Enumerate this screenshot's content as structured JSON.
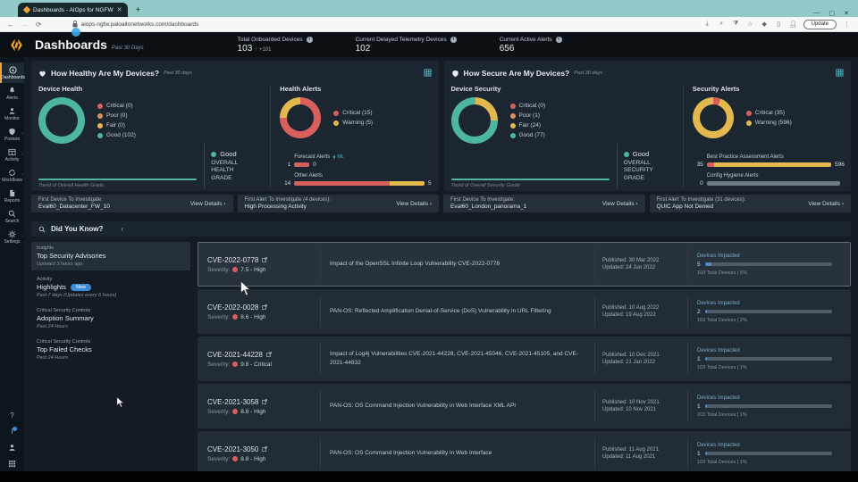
{
  "colors": {
    "red": "#d75f5c",
    "orange": "#e09156",
    "yellow": "#e3b94f",
    "teal": "#4db6a0",
    "blue": "#4191d6",
    "gray": "#707a83"
  },
  "browser": {
    "tab_title": "Dashboards - AIOps for NGFW",
    "url": "aiops-ngfw.paloaltonetworks.com/dashboards",
    "update_label": "Update"
  },
  "header": {
    "title": "Dashboards",
    "period": "Past 30 Days",
    "stats": [
      {
        "label": "Total Onboarded Devices",
        "value": "103",
        "delta": "+101"
      },
      {
        "label": "Current Delayed Telemetry Devices",
        "value": "102",
        "delta": ""
      },
      {
        "label": "Current Active Alerts",
        "value": "656",
        "delta": ""
      }
    ]
  },
  "sidebar": {
    "items": [
      {
        "label": "Dashboards"
      },
      {
        "label": "Alerts"
      },
      {
        "label": "Monitor"
      },
      {
        "label": "Posture"
      },
      {
        "label": "Activity"
      },
      {
        "label": "Workflows"
      },
      {
        "label": "Reports"
      },
      {
        "label": "Search"
      },
      {
        "label": "Settings"
      }
    ]
  },
  "panels": [
    {
      "title": "How Healthy Are My Devices?",
      "period": "Past 30 days",
      "device": {
        "title": "Device Health",
        "legend": [
          {
            "label": "Critical (0)",
            "color": "#d75f5c"
          },
          {
            "label": "Poor (0)",
            "color": "#e09156"
          },
          {
            "label": "Fair (0)",
            "color": "#e3b94f"
          },
          {
            "label": "Good (102)",
            "color": "#4db6a0"
          }
        ],
        "segments": [
          {
            "color": "#4db6a0",
            "pct": 100
          }
        ]
      },
      "grade": {
        "word": "Good",
        "caption": "OVERALL HEALTH GRADE",
        "color": "#4db6a0"
      },
      "trend_caption": "Trend of Overall Health Grade",
      "alerts": {
        "title": "Health Alerts",
        "legend": [
          {
            "label": "Critical (15)",
            "color": "#d75f5c"
          },
          {
            "label": "Warning (5)",
            "color": "#e3b94f"
          }
        ],
        "segments": [
          {
            "color": "#d75f5c",
            "pct": 75
          },
          {
            "color": "#e3b94f",
            "pct": 25
          }
        ]
      },
      "bars": [
        {
          "label": "Forecast Alerts",
          "ml": "ML",
          "left": "1",
          "right": "0",
          "width_pct": 10,
          "segments": [
            {
              "color": "#d75f5c",
              "pct": 100
            }
          ]
        },
        {
          "label": "Other Alerts",
          "left": "14",
          "right": "5",
          "width_pct": 90,
          "segments": [
            {
              "color": "#d75f5c",
              "pct": 73
            },
            {
              "color": "#e3b94f",
              "pct": 27
            }
          ]
        }
      ],
      "investigate": [
        {
          "title": "First Device To Investigate:",
          "value": "Eval60_Datacenter_FW_10",
          "action": "View Details"
        },
        {
          "title": "First Alert To Investigate (4 devices):",
          "value": "High Processing Activity",
          "action": "View Details"
        }
      ]
    },
    {
      "title": "How Secure Are My Devices?",
      "period": "Past 30 days",
      "device": {
        "title": "Device Security",
        "legend": [
          {
            "label": "Critical (0)",
            "color": "#d75f5c"
          },
          {
            "label": "Poor (1)",
            "color": "#e09156"
          },
          {
            "label": "Fair (24)",
            "color": "#e3b94f"
          },
          {
            "label": "Good (77)",
            "color": "#4db6a0"
          }
        ],
        "segments": [
          {
            "color": "#e09156",
            "pct": 1
          },
          {
            "color": "#e3b94f",
            "pct": 24
          },
          {
            "color": "#4db6a0",
            "pct": 75
          }
        ]
      },
      "grade": {
        "word": "Good",
        "caption": "OVERALL SECURITY GRADE",
        "color": "#4db6a0"
      },
      "trend_caption": "Trend of Overall Security Grade",
      "alerts": {
        "title": "Security Alerts",
        "legend": [
          {
            "label": "Critical (35)",
            "color": "#d75f5c"
          },
          {
            "label": "Warning (596)",
            "color": "#e3b94f"
          }
        ],
        "segments": [
          {
            "color": "#d75f5c",
            "pct": 6
          },
          {
            "color": "#e3b94f",
            "pct": 94
          }
        ]
      },
      "bars": [
        {
          "label": "Best Practice Assessment Alerts",
          "left": "35",
          "right": "596",
          "width_pct": 90,
          "segments": [
            {
              "color": "#d75f5c",
              "pct": 6
            },
            {
              "color": "#e3b94f",
              "pct": 94
            }
          ]
        },
        {
          "label": "Config Hygiene Alerts",
          "left": "0",
          "right": "",
          "width_pct": 92,
          "segments": [
            {
              "color": "#707a83",
              "pct": 100
            }
          ]
        }
      ],
      "investigate": [
        {
          "title": "First Device To Investigate:",
          "value": "Eval60_London_panorama_1",
          "action": "View Details"
        },
        {
          "title": "First Alert To Investigate (31 devices):",
          "value": "QUIC App Not Denied",
          "action": "View Details"
        }
      ]
    }
  ],
  "did_you_know": {
    "title": "Did You Know?",
    "items": [
      {
        "category": "Insights",
        "title": "Top Security Advisories",
        "meta": "Updated 3 hours ago",
        "selected": true
      },
      {
        "category": "Activity",
        "title": "Highlights",
        "badge": "New",
        "meta": "Past 7 days (Updates every 6 hours)"
      },
      {
        "category": "Critical Security Controls",
        "title": "Adoption Summary",
        "meta": "Past 24 Hours"
      },
      {
        "category": "Critical Security Controls",
        "title": "Top Failed Checks",
        "meta": "Past 24 Hours"
      }
    ],
    "severity_label": "Severity:",
    "devices_label": "Devices Impacted",
    "advisories": [
      {
        "id": "CVE-2022-0778",
        "severity": "7.5 - High",
        "selected": true,
        "desc": "Impact of the OpenSSL Infinite Loop Vulnerability CVE-2022-0778",
        "published": "Published: 30 Mar 2022",
        "updated": "Updated: 24 Jun 2022",
        "impacted": "5",
        "pct": 5,
        "total": "103 Total Devices | 5%"
      },
      {
        "id": "CVE-2022-0028",
        "severity": "8.6 - High",
        "desc": "PAN-OS: Reflected Amplification Denial-of-Service (DoS) Vulnerability in URL Filtering",
        "published": "Published: 10 Aug 2022",
        "updated": "Updated: 19 Aug 2022",
        "impacted": "2",
        "pct": 2,
        "total": "103 Total Devices | 2%"
      },
      {
        "id": "CVE-2021-44228",
        "severity": "9.8 - Critical",
        "desc": "Impact of Log4j Vulnerabilities CVE-2021-44228, CVE-2021-45046, CVE-2021-45105, and CVE-2021-44832",
        "published": "Published: 10 Dec 2021",
        "updated": "Updated: 21 Jan 2022",
        "impacted": "1",
        "pct": 1,
        "total": "103 Total Devices | 1%"
      },
      {
        "id": "CVE-2021-3058",
        "severity": "8.8 - High",
        "desc": "PAN-OS: OS Command Injection Vulnerability in Web Interface XML API",
        "published": "Published: 10 Nov 2021",
        "updated": "Updated: 10 Nov 2021",
        "impacted": "1",
        "pct": 1,
        "total": "103 Total Devices | 1%"
      },
      {
        "id": "CVE-2021-3050",
        "severity": "8.8 - High",
        "desc": "PAN-OS: OS Command Injection Vulnerability in Web Interface",
        "published": "Published: 11 Aug 2021",
        "updated": "Updated: 11 Aug 2021",
        "impacted": "1",
        "pct": 1,
        "total": "103 Total Devices | 1%"
      }
    ]
  }
}
